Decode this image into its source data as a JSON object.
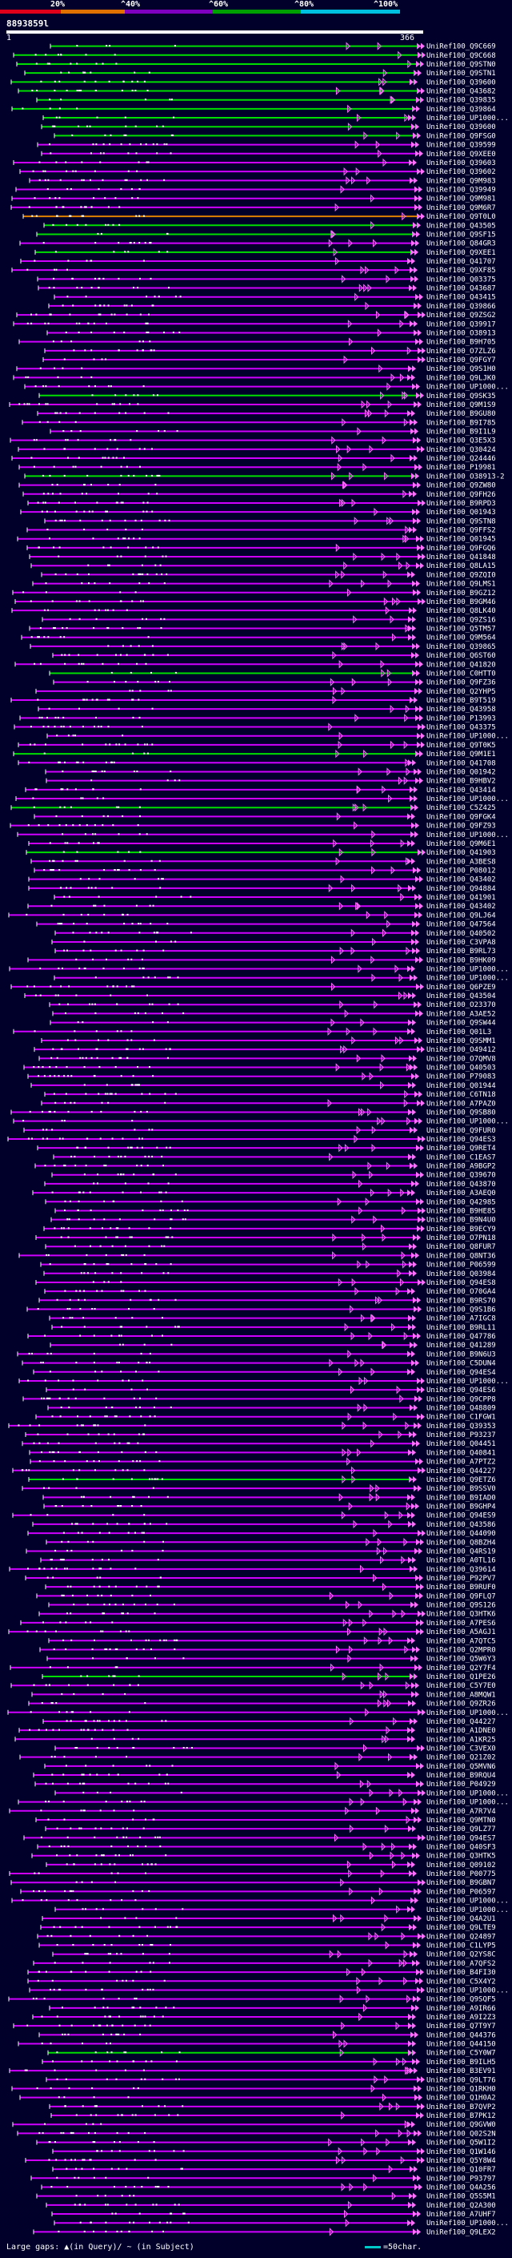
{
  "header": {
    "scale_labels": [
      "20%",
      "^40%",
      "^60%",
      "^80%",
      "^100%"
    ],
    "scale_colors": [
      "#e0001a",
      "#e07000",
      "#8000c0",
      "#00a000",
      "#00c0e0"
    ],
    "query_id": "8893859l",
    "ruler_start": "1",
    "ruler_end": "366"
  },
  "legend": {
    "large_gaps": "Large gaps: ▲(in Query)/ ~ (in Subject)",
    "scale": "=50char."
  },
  "colors": {
    "background": "#00002a",
    "green": "#00dd00",
    "purple": "#d000ff",
    "pink": "#ff70ff",
    "orange": "#e08000",
    "white": "#ffffff"
  },
  "hits": [
    {
      "label": "UniRef100_Q9C669",
      "color": "green"
    },
    {
      "label": "UniRef100_Q9C668",
      "color": "green"
    },
    {
      "label": "UniRef100_Q9STN0",
      "color": "green"
    },
    {
      "label": "UniRef100_Q9STN1",
      "color": "green"
    },
    {
      "label": "UniRef100_Q39600",
      "color": "green"
    },
    {
      "label": "UniRef100_Q43682",
      "color": "green"
    },
    {
      "label": "UniRef100_Q39835",
      "color": "green"
    },
    {
      "label": "UniRef100_Q39864",
      "color": "green"
    },
    {
      "label": "UniRef100_UP1000...",
      "color": "green"
    },
    {
      "label": "UniRef100_Q39600",
      "color": "green"
    },
    {
      "label": "UniRef100_Q9FSG0",
      "color": "green"
    },
    {
      "label": "UniRef100_Q39599",
      "color": "purple"
    },
    {
      "label": "UniRef100_Q9XEE0",
      "color": "purple"
    },
    {
      "label": "UniRef100_Q39603",
      "color": "purple"
    },
    {
      "label": "UniRef100_Q39602",
      "color": "purple"
    },
    {
      "label": "UniRef100_Q9M983",
      "color": "purple"
    },
    {
      "label": "UniRef100_Q39949",
      "color": "purple"
    },
    {
      "label": "UniRef100_Q9M981",
      "color": "purple"
    },
    {
      "label": "UniRef100_Q9M6R7",
      "color": "purple"
    },
    {
      "label": "UniRef100_Q9T0L0",
      "color": "orange"
    },
    {
      "label": "UniRef100_Q43505",
      "color": "green"
    },
    {
      "label": "UniRef100_Q9SF15",
      "color": "green"
    },
    {
      "label": "UniRef100_Q84GR3",
      "color": "purple"
    },
    {
      "label": "UniRef100_Q9XEE1",
      "color": "green"
    },
    {
      "label": "UniRef100_Q41707",
      "color": "purple"
    },
    {
      "label": "UniRef100_Q9XF85",
      "color": "purple"
    },
    {
      "label": "UniRef100_Q03375",
      "color": "purple"
    },
    {
      "label": "UniRef100_Q43687",
      "color": "purple"
    },
    {
      "label": "UniRef100_Q43415",
      "color": "purple"
    },
    {
      "label": "UniRef100_Q39866",
      "color": "purple"
    },
    {
      "label": "UniRef100_Q9ZSG2",
      "color": "purple"
    },
    {
      "label": "UniRef100_Q39917",
      "color": "purple"
    },
    {
      "label": "UniRef100_O38913",
      "color": "purple"
    },
    {
      "label": "UniRef100_B9H705",
      "color": "purple"
    },
    {
      "label": "UniRef100_O7ZLZ6",
      "color": "purple"
    },
    {
      "label": "UniRef100_Q9FGY7",
      "color": "purple"
    },
    {
      "label": "UniRef100_Q9S1H0",
      "color": "purple"
    },
    {
      "label": "UniRef100_Q9LJK0",
      "color": "purple"
    },
    {
      "label": "UniRef100_UP1000...",
      "color": "purple"
    },
    {
      "label": "UniRef100_Q9SK35",
      "color": "green"
    },
    {
      "label": "UniRef100_Q9M1S9",
      "color": "purple"
    },
    {
      "label": "UniRef100_B9GU80",
      "color": "purple"
    },
    {
      "label": "UniRef100_B9I785",
      "color": "purple"
    },
    {
      "label": "UniRef100_B9I1L9",
      "color": "purple"
    },
    {
      "label": "UniRef100_Q3E5X3",
      "color": "purple"
    },
    {
      "label": "UniRef100_Q30424",
      "color": "purple"
    },
    {
      "label": "UniRef100_Q24446",
      "color": "purple"
    },
    {
      "label": "UniRef100_P19981",
      "color": "purple"
    },
    {
      "label": "UniRef100_O38913-2",
      "color": "green"
    },
    {
      "label": "UniRef100_Q9ZW80",
      "color": "purple"
    },
    {
      "label": "UniRef100_Q9FH26",
      "color": "purple"
    },
    {
      "label": "UniRef100_B9RPD3",
      "color": "purple"
    },
    {
      "label": "UniRef100_Q01943",
      "color": "purple"
    },
    {
      "label": "UniRef100_Q9STN8",
      "color": "purple"
    },
    {
      "label": "UniRef100_Q9FFS2",
      "color": "purple"
    },
    {
      "label": "UniRef100_Q01945",
      "color": "purple"
    },
    {
      "label": "UniRef100_Q9FGQ6",
      "color": "purple"
    },
    {
      "label": "UniRef100_Q41848",
      "color": "purple"
    },
    {
      "label": "UniRef100_Q8LA15",
      "color": "purple"
    },
    {
      "label": "UniRef100_Q9ZQI0",
      "color": "purple"
    },
    {
      "label": "UniRef100_Q9LMS1",
      "color": "purple"
    },
    {
      "label": "UniRef100_B9GZ12",
      "color": "purple"
    },
    {
      "label": "UniRef100_B9GM46",
      "color": "purple"
    },
    {
      "label": "UniRef100_Q8LK40",
      "color": "purple"
    },
    {
      "label": "UniRef100_Q9ZS16",
      "color": "purple"
    },
    {
      "label": "UniRef100_Q5TM57",
      "color": "purple"
    },
    {
      "label": "UniRef100_Q9M564",
      "color": "purple"
    },
    {
      "label": "UniRef100_Q39865",
      "color": "purple"
    },
    {
      "label": "UniRef100_Q6ST60",
      "color": "purple"
    },
    {
      "label": "UniRef100_Q41820",
      "color": "purple"
    },
    {
      "label": "UniRef100_C0HTT0",
      "color": "green"
    },
    {
      "label": "UniRef100_Q9FZ36",
      "color": "purple"
    },
    {
      "label": "UniRef100_Q2YHP5",
      "color": "purple"
    },
    {
      "label": "UniRef100_B9T519",
      "color": "purple"
    },
    {
      "label": "UniRef100_Q43958",
      "color": "purple"
    },
    {
      "label": "UniRef100_P13993",
      "color": "purple"
    },
    {
      "label": "UniRef100_Q43375",
      "color": "purple"
    },
    {
      "label": "UniRef100_UP1000...",
      "color": "purple"
    },
    {
      "label": "UniRef100_Q9T0K5",
      "color": "purple"
    },
    {
      "label": "UniRef100_Q9M1E1",
      "color": "green"
    },
    {
      "label": "UniRef100_Q41708",
      "color": "purple"
    },
    {
      "label": "UniRef100_Q01942",
      "color": "purple"
    },
    {
      "label": "UniRef100_B9HBV2",
      "color": "purple"
    },
    {
      "label": "UniRef100_Q43414",
      "color": "purple"
    },
    {
      "label": "UniRef100_UP1000...",
      "color": "purple"
    },
    {
      "label": "UniRef100_C5Z425",
      "color": "green"
    },
    {
      "label": "UniRef100_Q9FGK4",
      "color": "purple"
    },
    {
      "label": "UniRef100_Q9FZ93",
      "color": "purple"
    },
    {
      "label": "UniRef100_UP1000...",
      "color": "purple"
    },
    {
      "label": "UniRef100_Q9M6E1",
      "color": "purple"
    },
    {
      "label": "UniRef100_Q41903",
      "color": "green"
    },
    {
      "label": "UniRef100_A3BES8",
      "color": "purple"
    },
    {
      "label": "UniRef100_P08012",
      "color": "purple"
    },
    {
      "label": "UniRef100_Q43402",
      "color": "purple"
    },
    {
      "label": "UniRef100_Q94884",
      "color": "purple"
    },
    {
      "label": "UniRef100_Q41901",
      "color": "purple"
    },
    {
      "label": "UniRef100_Q43402",
      "color": "purple"
    },
    {
      "label": "UniRef100_Q9LJ64",
      "color": "purple"
    },
    {
      "label": "UniRef100_Q47564",
      "color": "purple"
    },
    {
      "label": "UniRef100_Q40502",
      "color": "purple"
    },
    {
      "label": "UniRef100_C3VPA8",
      "color": "purple"
    },
    {
      "label": "UniRef100_B9RL73",
      "color": "purple"
    },
    {
      "label": "UniRef100_B9HK09",
      "color": "purple"
    },
    {
      "label": "UniRef100_UP1000...",
      "color": "purple"
    },
    {
      "label": "UniRef100_UP1000...",
      "color": "purple"
    },
    {
      "label": "UniRef100_Q6PZE9",
      "color": "purple"
    },
    {
      "label": "UniRef100_Q43504",
      "color": "purple"
    },
    {
      "label": "UniRef100_O23370",
      "color": "purple"
    },
    {
      "label": "UniRef100_A3AE52",
      "color": "purple"
    },
    {
      "label": "UniRef100_Q9SW44",
      "color": "purple"
    },
    {
      "label": "UniRef100_Q01L3",
      "color": "purple"
    },
    {
      "label": "UniRef100_Q9SMM1",
      "color": "purple"
    },
    {
      "label": "UniRef100_O49412",
      "color": "purple"
    },
    {
      "label": "UniRef100_O7QMV8",
      "color": "purple"
    },
    {
      "label": "UniRef100_Q40503",
      "color": "purple"
    },
    {
      "label": "UniRef100_P79083",
      "color": "purple"
    },
    {
      "label": "UniRef100_Q01944",
      "color": "purple"
    },
    {
      "label": "UniRef100_C6TN18",
      "color": "purple"
    },
    {
      "label": "UniRef100_A7PAZ0",
      "color": "purple"
    },
    {
      "label": "UniRef100_Q9SB80",
      "color": "purple"
    },
    {
      "label": "UniRef100_UP1000...",
      "color": "purple"
    },
    {
      "label": "UniRef100_Q9FUR0",
      "color": "purple"
    },
    {
      "label": "UniRef100_Q94ES3",
      "color": "purple"
    },
    {
      "label": "UniRef100_Q9RET4",
      "color": "purple"
    },
    {
      "label": "UniRef100_C1EAS7",
      "color": "purple"
    },
    {
      "label": "UniRef100_A9BGP2",
      "color": "purple"
    },
    {
      "label": "UniRef100_Q39670",
      "color": "purple"
    },
    {
      "label": "UniRef100_Q43870",
      "color": "purple"
    },
    {
      "label": "UniRef100_A3AEQ0",
      "color": "purple"
    },
    {
      "label": "UniRef100_Q42985",
      "color": "purple"
    },
    {
      "label": "UniRef100_B9HE85",
      "color": "purple"
    },
    {
      "label": "UniRef100_B9N4U0",
      "color": "purple"
    },
    {
      "label": "UniRef100_B9ECY9",
      "color": "purple"
    },
    {
      "label": "UniRef100_O7PN18",
      "color": "purple"
    },
    {
      "label": "UniRef100_Q8FUR7",
      "color": "purple"
    },
    {
      "label": "UniRef100_Q8NT36",
      "color": "purple"
    },
    {
      "label": "UniRef100_P06599",
      "color": "purple"
    },
    {
      "label": "UniRef100_Q03984",
      "color": "purple"
    },
    {
      "label": "UniRef100_Q94ES8",
      "color": "purple"
    },
    {
      "label": "UniRef100_O70GA4",
      "color": "purple"
    },
    {
      "label": "UniRef100_B9RS70",
      "color": "purple"
    },
    {
      "label": "UniRef100_Q9S1B6",
      "color": "purple"
    },
    {
      "label": "UniRef100_A7IGC8",
      "color": "purple"
    },
    {
      "label": "UniRef100_B9RL11",
      "color": "purple"
    },
    {
      "label": "UniRef100_Q47786",
      "color": "purple"
    },
    {
      "label": "UniRef100_Q41289",
      "color": "purple"
    },
    {
      "label": "UniRef100_B9N6U3",
      "color": "purple"
    },
    {
      "label": "UniRef100_C5DUN4",
      "color": "purple"
    },
    {
      "label": "UniRef100_Q94ES4",
      "color": "purple"
    },
    {
      "label": "UniRef100_UP1000...",
      "color": "purple"
    },
    {
      "label": "UniRef100_Q94ES6",
      "color": "purple"
    },
    {
      "label": "UniRef100_Q9CPP8",
      "color": "purple"
    },
    {
      "label": "UniRef100_Q48809",
      "color": "purple"
    },
    {
      "label": "UniRef100_C1FGW1",
      "color": "purple"
    },
    {
      "label": "UniRef100_Q39353",
      "color": "purple"
    },
    {
      "label": "UniRef100_P93237",
      "color": "purple"
    },
    {
      "label": "UniRef100_Q04451",
      "color": "purple"
    },
    {
      "label": "UniRef100_Q40841",
      "color": "purple"
    },
    {
      "label": "UniRef100_A7PTZ2",
      "color": "purple"
    },
    {
      "label": "UniRef100_Q44227",
      "color": "purple"
    },
    {
      "label": "UniRef100_Q9ETZ6",
      "color": "green"
    },
    {
      "label": "UniRef100_B9SSV0",
      "color": "purple"
    },
    {
      "label": "UniRef100_B9IAD0",
      "color": "purple"
    },
    {
      "label": "UniRef100_B9GHP4",
      "color": "purple"
    },
    {
      "label": "UniRef100_Q94ES9",
      "color": "purple"
    },
    {
      "label": "UniRef100_Q43586",
      "color": "purple"
    },
    {
      "label": "UniRef100_Q44090",
      "color": "purple"
    },
    {
      "label": "UniRef100_Q8BZH4",
      "color": "purple"
    },
    {
      "label": "UniRef100_Q4RS19",
      "color": "purple"
    },
    {
      "label": "UniRef100_A0TL16",
      "color": "purple"
    },
    {
      "label": "UniRef100_Q39614",
      "color": "purple"
    },
    {
      "label": "UniRef100_P92PV7",
      "color": "purple"
    },
    {
      "label": "UniRef100_B9RUF0",
      "color": "purple"
    },
    {
      "label": "UniRef100_Q9FLQ7",
      "color": "purple"
    },
    {
      "label": "UniRef100_Q9S126",
      "color": "purple"
    },
    {
      "label": "UniRef100_Q3HTK6",
      "color": "purple"
    },
    {
      "label": "UniRef100_A7PES6",
      "color": "purple"
    },
    {
      "label": "UniRef100_A5AGJ1",
      "color": "purple"
    },
    {
      "label": "UniRef100_A7QTC5",
      "color": "purple"
    },
    {
      "label": "UniRef100_Q2MPR0",
      "color": "purple"
    },
    {
      "label": "UniRef100_Q5W6Y3",
      "color": "purple"
    },
    {
      "label": "UniRef100_Q2Y7F4",
      "color": "purple"
    },
    {
      "label": "UniRef100_Q1PE26",
      "color": "green"
    },
    {
      "label": "UniRef100_C5Y7E0",
      "color": "purple"
    },
    {
      "label": "UniRef100_A8MQW1",
      "color": "purple"
    },
    {
      "label": "UniRef100_Q9ZR26",
      "color": "purple"
    },
    {
      "label": "UniRef100_UP1000...",
      "color": "purple"
    },
    {
      "label": "UniRef100_Q44227",
      "color": "purple"
    },
    {
      "label": "UniRef100_A1DNE0",
      "color": "purple"
    },
    {
      "label": "UniRef100_A1KR25",
      "color": "purple"
    },
    {
      "label": "UniRef100_C3VEX0",
      "color": "purple"
    },
    {
      "label": "UniRef100_Q21Z02",
      "color": "purple"
    },
    {
      "label": "UniRef100_Q5MVN6",
      "color": "purple"
    },
    {
      "label": "UniRef100_B9RQU4",
      "color": "purple"
    },
    {
      "label": "UniRef100_P04929",
      "color": "purple"
    },
    {
      "label": "UniRef100_UP1000...",
      "color": "purple"
    },
    {
      "label": "UniRef100_UP1000...",
      "color": "purple"
    },
    {
      "label": "UniRef100_A7R7V4",
      "color": "purple"
    },
    {
      "label": "UniRef100_Q9MTN0",
      "color": "purple"
    },
    {
      "label": "UniRef100_Q9LZ77",
      "color": "purple"
    },
    {
      "label": "UniRef100_Q94ES7",
      "color": "purple"
    },
    {
      "label": "UniRef100_Q40SF3",
      "color": "purple"
    },
    {
      "label": "UniRef100_Q3HTK5",
      "color": "purple"
    },
    {
      "label": "UniRef100_Q09102",
      "color": "purple"
    },
    {
      "label": "UniRef100_P00775",
      "color": "purple"
    },
    {
      "label": "UniRef100_B9GBN7",
      "color": "purple"
    },
    {
      "label": "UniRef100_P06597",
      "color": "purple"
    },
    {
      "label": "UniRef100_UP1000...",
      "color": "purple"
    },
    {
      "label": "UniRef100_UP1000...",
      "color": "purple"
    },
    {
      "label": "UniRef100_Q4A2U1",
      "color": "purple"
    },
    {
      "label": "UniRef100_Q9LTE9",
      "color": "purple"
    },
    {
      "label": "UniRef100_Q24897",
      "color": "purple"
    },
    {
      "label": "UniRef100_C1LYP5",
      "color": "purple"
    },
    {
      "label": "UniRef100_Q2YS8C",
      "color": "purple"
    },
    {
      "label": "UniRef100_A7QFS2",
      "color": "purple"
    },
    {
      "label": "UniRef100_B4FI30",
      "color": "purple"
    },
    {
      "label": "UniRef100_C5X4Y2",
      "color": "purple"
    },
    {
      "label": "UniRef100_UP1000...",
      "color": "purple"
    },
    {
      "label": "UniRef100_Q9SQF5",
      "color": "purple"
    },
    {
      "label": "UniRef100_A9IR66",
      "color": "purple"
    },
    {
      "label": "UniRef100_A9I2Z3",
      "color": "purple"
    },
    {
      "label": "UniRef100_Q7T9Y7",
      "color": "purple"
    },
    {
      "label": "UniRef100_Q44376",
      "color": "purple"
    },
    {
      "label": "UniRef100_Q44150",
      "color": "purple"
    },
    {
      "label": "UniRef100_C5Y0W7",
      "color": "green"
    },
    {
      "label": "UniRef100_B9ILH5",
      "color": "purple"
    },
    {
      "label": "UniRef100_B3EV91",
      "color": "purple"
    },
    {
      "label": "UniRef100_Q9LT76",
      "color": "purple"
    },
    {
      "label": "UniRef100_Q1RKH0",
      "color": "purple"
    },
    {
      "label": "UniRef100_Q1H0A2",
      "color": "purple"
    },
    {
      "label": "UniRef100_B7QVP2",
      "color": "purple"
    },
    {
      "label": "UniRef100_B7PK12",
      "color": "purple"
    },
    {
      "label": "UniRef100_Q9GVW0",
      "color": "purple"
    },
    {
      "label": "UniRef100_Q02S2N",
      "color": "purple"
    },
    {
      "label": "UniRef100_Q5W1I2",
      "color": "purple"
    },
    {
      "label": "UniRef100_Q1W146",
      "color": "purple"
    },
    {
      "label": "UniRef100_Q5Y8W4",
      "color": "purple"
    },
    {
      "label": "UniRef100_Q10FR7",
      "color": "purple"
    },
    {
      "label": "UniRef100_P93797",
      "color": "purple"
    },
    {
      "label": "UniRef100_Q4A256",
      "color": "purple"
    },
    {
      "label": "UniRef100_Q5S5M1",
      "color": "purple"
    },
    {
      "label": "UniRef100_Q2A300",
      "color": "purple"
    },
    {
      "label": "UniRef100_A7UHF7",
      "color": "purple"
    },
    {
      "label": "UniRef100_UP1000...",
      "color": "purple"
    },
    {
      "label": "UniRef100_Q9LEX2",
      "color": "purple"
    }
  ]
}
